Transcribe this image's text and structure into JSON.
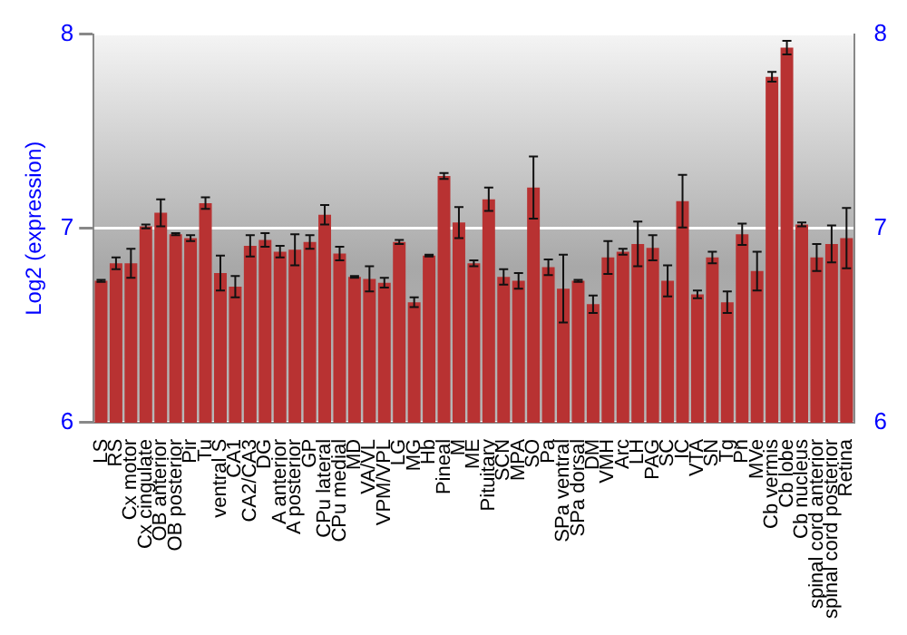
{
  "chart_data": {
    "type": "bar",
    "ylabel": "Log2 (expression)",
    "categories": [
      "LS",
      "RS",
      "Cx motor",
      "Cx cingulate",
      "OB anterior",
      "OB posterior",
      "Pir",
      "Tu",
      "ventral S",
      "CA1",
      "CA2/CA3",
      "DG",
      "A anterior",
      "A posterior",
      "GP",
      "CPu lateral",
      "CPu medial",
      "MD",
      "VA/VL",
      "VPM/VPL",
      "LG",
      "MG",
      "Hb",
      "Pineal",
      "M",
      "ME",
      "Pituitary",
      "SCN",
      "MPA",
      "SO",
      "Pa",
      "SPa ventral",
      "SPa dorsal",
      "DM",
      "VMH",
      "Arc",
      "LH",
      "PAG",
      "SC",
      "IC",
      "VTA",
      "SN",
      "Tg",
      "Pn",
      "MVe",
      "Cb vermis",
      "Cb lobe",
      "Cb nucleus",
      "spinal cord anterior",
      "spinal cord posterior",
      "Retina"
    ],
    "values": [
      6.73,
      6.82,
      6.82,
      7.01,
      7.08,
      6.97,
      6.95,
      7.13,
      6.77,
      6.7,
      6.91,
      6.94,
      6.88,
      6.89,
      6.93,
      7.07,
      6.87,
      6.75,
      6.74,
      6.72,
      6.93,
      6.62,
      6.86,
      7.27,
      7.03,
      6.82,
      7.15,
      6.75,
      6.73,
      7.21,
      6.8,
      6.69,
      6.73,
      6.61,
      6.85,
      6.88,
      6.92,
      6.9,
      6.73,
      7.14,
      6.66,
      6.85,
      6.62,
      6.97,
      6.78,
      7.78,
      7.93,
      7.02,
      6.85,
      6.92,
      6.95
    ],
    "errors": [
      0.005,
      0.03,
      0.075,
      0.01,
      0.07,
      0.005,
      0.015,
      0.03,
      0.09,
      0.055,
      0.055,
      0.035,
      0.03,
      0.08,
      0.035,
      0.05,
      0.035,
      0.005,
      0.065,
      0.025,
      0.01,
      0.025,
      0.005,
      0.015,
      0.08,
      0.015,
      0.06,
      0.04,
      0.04,
      0.16,
      0.04,
      0.175,
      0.005,
      0.045,
      0.085,
      0.015,
      0.115,
      0.065,
      0.08,
      0.135,
      0.02,
      0.03,
      0.055,
      0.055,
      0.1,
      0.025,
      0.035,
      0.01,
      0.07,
      0.095,
      0.155
    ],
    "color": "#b83232",
    "ylim": [
      6,
      8
    ],
    "yticks": [
      6,
      7,
      8
    ],
    "y2lim": [
      6,
      8
    ],
    "y2ticks": [
      6,
      7,
      8
    ],
    "grid": "y",
    "legend": false
  }
}
